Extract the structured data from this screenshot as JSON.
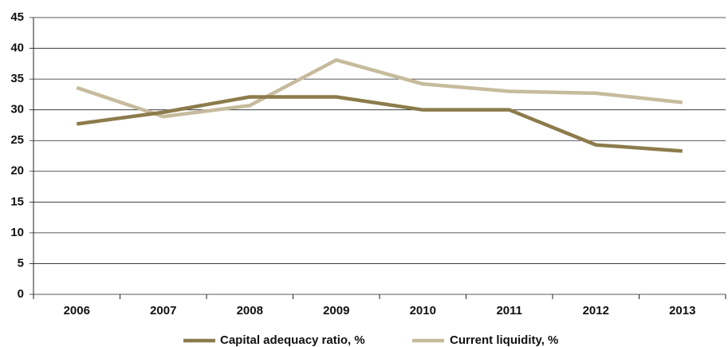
{
  "chart_data": {
    "type": "line",
    "categories": [
      "2006",
      "2007",
      "2008",
      "2009",
      "2010",
      "2011",
      "2012",
      "2013"
    ],
    "series": [
      {
        "name": "Capital adequacy ratio, %",
        "color": "#8c7b4b",
        "values": [
          27.7,
          29.6,
          32.1,
          32.1,
          30.0,
          30.0,
          24.3,
          23.3
        ]
      },
      {
        "name": "Current liquidity, %",
        "color": "#c6bb9c",
        "values": [
          33.6,
          28.9,
          30.7,
          38.1,
          34.2,
          33.0,
          32.7,
          31.2
        ]
      }
    ],
    "ylim": [
      0,
      45
    ],
    "yticks": [
      0,
      5,
      10,
      15,
      20,
      25,
      30,
      35,
      40,
      45
    ],
    "grid": true,
    "legend": "bottom"
  }
}
